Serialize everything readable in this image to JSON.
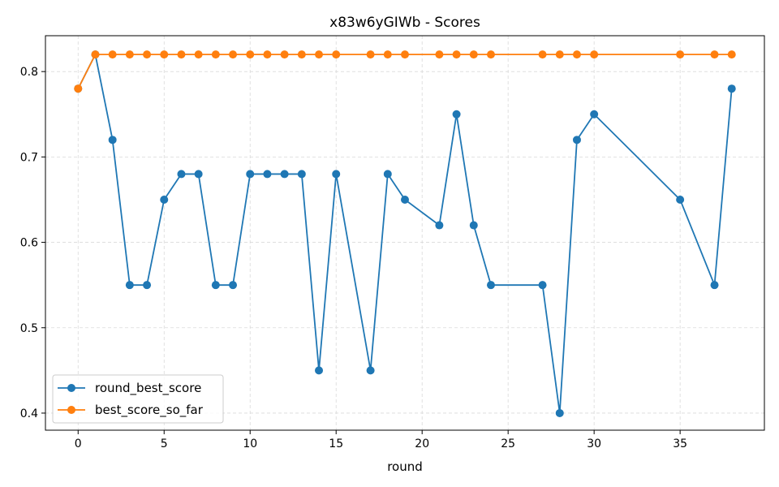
{
  "chart_data": {
    "type": "line",
    "title": "x83w6yGIWb - Scores",
    "xlabel": "round",
    "ylabel": "",
    "xlim": [
      -1.9,
      39.9
    ],
    "ylim": [
      0.38,
      0.842
    ],
    "xticks": [
      0,
      5,
      10,
      15,
      20,
      25,
      30,
      35
    ],
    "yticks": [
      0.4,
      0.5,
      0.6,
      0.7,
      0.8
    ],
    "grid": true,
    "legend_position": "lower-left",
    "series": [
      {
        "name": "round_best_score",
        "color": "#1f77b4",
        "x": [
          0,
          1,
          2,
          3,
          4,
          5,
          6,
          7,
          8,
          9,
          10,
          11,
          12,
          13,
          14,
          15,
          17,
          18,
          19,
          21,
          22,
          23,
          24,
          27,
          28,
          29,
          30,
          35,
          37,
          38
        ],
        "y": [
          0.78,
          0.82,
          0.72,
          0.55,
          0.55,
          0.65,
          0.68,
          0.68,
          0.55,
          0.55,
          0.68,
          0.68,
          0.68,
          0.68,
          0.45,
          0.68,
          0.45,
          0.68,
          0.65,
          0.62,
          0.75,
          0.62,
          0.55,
          0.55,
          0.4,
          0.72,
          0.75,
          0.65,
          0.55,
          0.78
        ]
      },
      {
        "name": "best_score_so_far",
        "color": "#ff7f0e",
        "x": [
          0,
          1,
          2,
          3,
          4,
          5,
          6,
          7,
          8,
          9,
          10,
          11,
          12,
          13,
          14,
          15,
          17,
          18,
          19,
          21,
          22,
          23,
          24,
          27,
          28,
          29,
          30,
          35,
          37,
          38
        ],
        "y": [
          0.78,
          0.82,
          0.82,
          0.82,
          0.82,
          0.82,
          0.82,
          0.82,
          0.82,
          0.82,
          0.82,
          0.82,
          0.82,
          0.82,
          0.82,
          0.82,
          0.82,
          0.82,
          0.82,
          0.82,
          0.82,
          0.82,
          0.82,
          0.82,
          0.82,
          0.82,
          0.82,
          0.82,
          0.82,
          0.82
        ]
      }
    ]
  }
}
